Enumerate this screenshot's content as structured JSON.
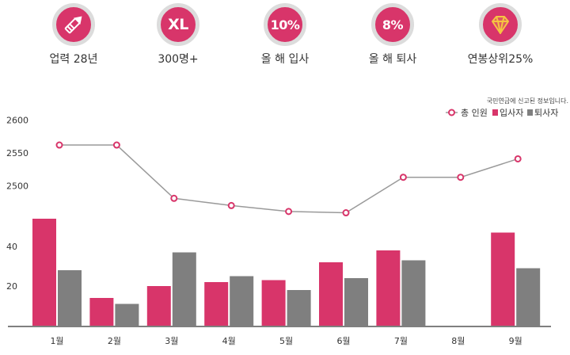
{
  "stats": [
    {
      "icon": "pen-tool-icon",
      "label": "업력 28년"
    },
    {
      "icon": "size-xl-icon",
      "badge_text": "XL",
      "label": "300명+"
    },
    {
      "icon": "percent-icon",
      "badge_text": "10%",
      "label": "올 해 입사"
    },
    {
      "icon": "percent-icon",
      "badge_text": "8%",
      "label": "올 해 퇴사"
    },
    {
      "icon": "diamond-icon",
      "label": "연봉상위25%"
    }
  ],
  "colors": {
    "accent": "#d8356a",
    "gray": "#7f7f7f",
    "line": "#9a9a9a"
  },
  "chart_data": {
    "type": "bar",
    "note": "국민연금에 신고된 정보입니다.",
    "legend": {
      "placement": "top-right",
      "entries": [
        "총 인원",
        "입사자",
        "퇴사자"
      ]
    },
    "categories": [
      "1월",
      "2월",
      "3월",
      "4월",
      "5월",
      "6월",
      "7월",
      "8월",
      "9월"
    ],
    "upper_axis": {
      "ticks": [
        2600,
        2550,
        2500
      ],
      "range": [
        2500,
        2600
      ]
    },
    "lower_axis": {
      "ticks": [
        40,
        20
      ],
      "range": [
        0,
        60
      ]
    },
    "line_series": {
      "name": "총 인원",
      "values": [
        2562,
        2562,
        2481,
        2470,
        2461,
        2459,
        2513,
        2513,
        2541
      ]
    },
    "series": [
      {
        "name": "입사자",
        "values": [
          54,
          14,
          20,
          22,
          23,
          32,
          38,
          null,
          47
        ]
      },
      {
        "name": "퇴사자",
        "values": [
          28,
          11,
          37,
          25,
          18,
          24,
          33,
          null,
          29
        ]
      }
    ],
    "grid": false
  }
}
